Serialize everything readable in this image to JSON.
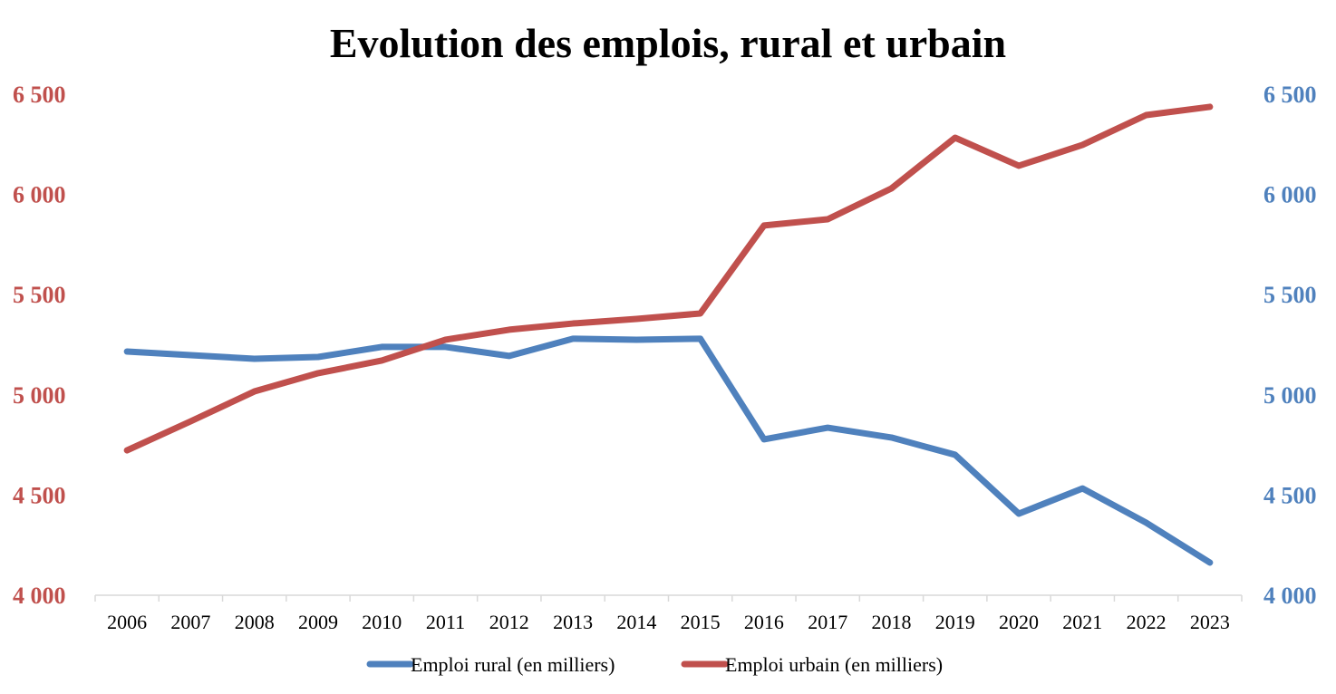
{
  "chart_data": {
    "type": "line",
    "title": "Evolution des emplois, rural et urbain",
    "categories": [
      "2006",
      "2007",
      "2008",
      "2009",
      "2010",
      "2011",
      "2012",
      "2013",
      "2014",
      "2015",
      "2016",
      "2017",
      "2018",
      "2019",
      "2020",
      "2021",
      "2022",
      "2023"
    ],
    "y_left": {
      "range": [
        4000,
        6500
      ],
      "ticks": [
        "4 000",
        "4 500",
        "5 000",
        "5 500",
        "6 000",
        "6 500"
      ],
      "color": "#c0504d"
    },
    "y_right": {
      "range": [
        4000,
        6500
      ],
      "ticks": [
        "4 000",
        "4 500",
        "5 000",
        "5 500",
        "6 000",
        "6 500"
      ],
      "color": "#4f81bd"
    },
    "grid": false,
    "legend": "bottom",
    "series": [
      {
        "name": "Emploi rural (en milliers)",
        "color": "#4f81bd",
        "axis": "right",
        "values": [
          5216,
          5198,
          5180,
          5189,
          5239,
          5239,
          5194,
          5280,
          5275,
          5280,
          4778,
          4836,
          4787,
          4701,
          4407,
          4533,
          4362,
          4163
        ]
      },
      {
        "name": "Emploi urbain (en milliers)",
        "color": "#c0504d",
        "axis": "left",
        "values": [
          4723,
          4868,
          5017,
          5108,
          5171,
          5275,
          5325,
          5356,
          5379,
          5406,
          5845,
          5876,
          6030,
          6283,
          6143,
          6247,
          6396,
          6437
        ]
      }
    ]
  }
}
